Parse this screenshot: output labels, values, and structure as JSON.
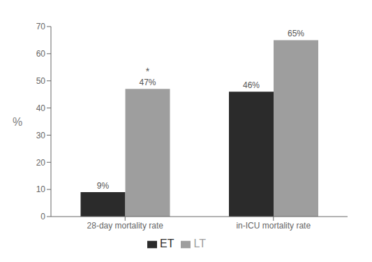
{
  "chart_data": {
    "type": "bar",
    "categories": [
      "28-day mortality rate",
      "in-ICU mortality rate"
    ],
    "series": [
      {
        "name": "ET",
        "color": "#2b2b2b",
        "values": [
          9,
          46
        ],
        "value_labels": [
          "9%",
          "46%"
        ]
      },
      {
        "name": "LT",
        "color": "#9e9e9e",
        "values": [
          47,
          65
        ],
        "value_labels": [
          "47%",
          "65%"
        ]
      }
    ],
    "ylabel": "%",
    "ylim": [
      0,
      70
    ],
    "yticks": [
      0,
      10,
      20,
      30,
      40,
      50,
      60,
      70
    ],
    "grid": false,
    "legend": "bottom",
    "data_labels": true,
    "annotations": [
      {
        "text": "*",
        "category": "28-day mortality rate",
        "series": "LT"
      }
    ]
  }
}
